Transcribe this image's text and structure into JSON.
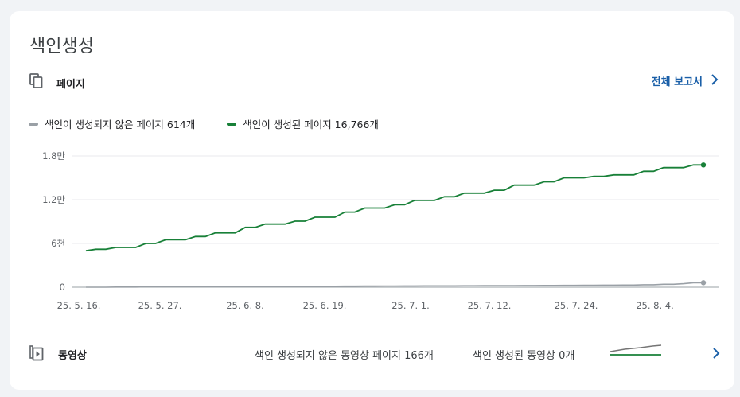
{
  "title": "색인생성",
  "pages": {
    "label": "페이지",
    "icon": "copy-pages-icon"
  },
  "full_report": {
    "label": "전체 보고서",
    "icon": "chevron-right-icon"
  },
  "colors": {
    "indexed": "#188038",
    "not_indexed": "#9aa0a6",
    "link": "#1a5fa8"
  },
  "legend": {
    "not_indexed": "색인이 생성되지 않은 페이지 614개",
    "indexed": "색인이 생성된 페이지 16,766개"
  },
  "chart_data": {
    "type": "line",
    "title": "",
    "xlabel": "",
    "ylabel": "",
    "ylim": [
      0,
      18000
    ],
    "y_ticks": [
      {
        "value": 0,
        "label": "0"
      },
      {
        "value": 6000,
        "label": "6천"
      },
      {
        "value": 12000,
        "label": "1.2만"
      },
      {
        "value": 18000,
        "label": "1.8만"
      }
    ],
    "x_tick_labels": [
      "25. 5. 16.",
      "25. 5. 27.",
      "25. 6. 8.",
      "25. 6. 19.",
      "25. 7. 1.",
      "25. 7. 12.",
      "25. 7. 24.",
      "25. 8. 4."
    ],
    "grid": true,
    "series": [
      {
        "name": "색인이 생성된 페이지",
        "values": [
          5000,
          5200,
          5200,
          5450,
          5450,
          5450,
          6000,
          6000,
          6500,
          6500,
          6500,
          6950,
          6950,
          7450,
          7450,
          7450,
          8200,
          8200,
          8650,
          8650,
          8650,
          9050,
          9050,
          9600,
          9600,
          9600,
          10300,
          10300,
          10850,
          10850,
          10850,
          11300,
          11300,
          11900,
          11900,
          11900,
          12400,
          12400,
          12900,
          12900,
          12900,
          13300,
          13300,
          14000,
          14000,
          14000,
          14450,
          14450,
          15000,
          15000,
          15000,
          15200,
          15200,
          15400,
          15400,
          15400,
          15900,
          15900,
          16400,
          16400,
          16400,
          16766,
          16766
        ]
      },
      {
        "name": "색인이 생성되지 않은 페이지",
        "values": [
          0,
          0,
          0,
          20,
          20,
          20,
          40,
          40,
          60,
          60,
          60,
          80,
          80,
          80,
          100,
          100,
          100,
          100,
          100,
          100,
          110,
          110,
          120,
          120,
          130,
          130,
          140,
          140,
          150,
          150,
          160,
          160,
          170,
          170,
          180,
          180,
          190,
          190,
          200,
          200,
          210,
          210,
          220,
          220,
          230,
          230,
          240,
          240,
          250,
          250,
          260,
          260,
          280,
          280,
          300,
          300,
          340,
          340,
          400,
          400,
          480,
          614,
          614
        ]
      }
    ]
  },
  "videos": {
    "label": "동영상",
    "icon": "video-play-icon",
    "not_indexed": "색인 생성되지 않은 동영상 페이지 166개",
    "indexed": "색인 생성된 동영상 0개",
    "chevron_icon": "chevron-right-icon"
  }
}
